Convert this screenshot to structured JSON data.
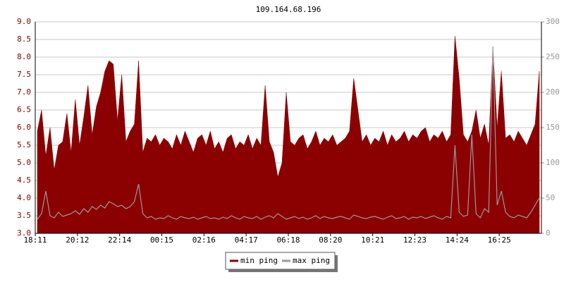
{
  "chart_data": {
    "type": "area",
    "title": "109.164.68.196",
    "categories": [
      "18:11",
      null,
      null,
      null,
      null,
      null,
      null,
      null,
      null,
      null,
      "20:12",
      null,
      null,
      null,
      null,
      null,
      null,
      null,
      null,
      null,
      "22:14",
      null,
      null,
      null,
      null,
      null,
      null,
      null,
      null,
      null,
      "00:15",
      null,
      null,
      null,
      null,
      null,
      null,
      null,
      null,
      null,
      "02:16",
      null,
      null,
      null,
      null,
      null,
      null,
      null,
      null,
      null,
      "04:17",
      null,
      null,
      null,
      null,
      null,
      null,
      null,
      null,
      null,
      "06:18",
      null,
      null,
      null,
      null,
      null,
      null,
      null,
      null,
      null,
      "08:20",
      null,
      null,
      null,
      null,
      null,
      null,
      null,
      null,
      null,
      "10:21",
      null,
      null,
      null,
      null,
      null,
      null,
      null,
      null,
      null,
      "12:23",
      null,
      null,
      null,
      null,
      null,
      null,
      null,
      null,
      null,
      "14:24",
      null,
      null,
      null,
      null,
      null,
      null,
      null,
      null,
      null,
      "16:25",
      null,
      null,
      null,
      null,
      null,
      null,
      null,
      null,
      null
    ],
    "series": [
      {
        "name": "min ping",
        "type": "area",
        "color": "#8b0000",
        "values": [
          5.9,
          6.5,
          5.2,
          6.0,
          4.8,
          5.5,
          5.6,
          6.4,
          5.3,
          6.8,
          5.5,
          6.3,
          7.2,
          5.8,
          6.6,
          7.0,
          7.6,
          7.9,
          7.8,
          6.2,
          7.5,
          5.6,
          5.9,
          6.1,
          7.9,
          5.3,
          5.7,
          5.6,
          5.8,
          5.5,
          5.7,
          5.6,
          5.4,
          5.8,
          5.5,
          5.9,
          5.6,
          5.3,
          5.7,
          5.8,
          5.5,
          5.9,
          5.4,
          5.6,
          5.3,
          5.7,
          5.8,
          5.4,
          5.6,
          5.5,
          5.8,
          5.4,
          5.7,
          5.5,
          7.2,
          5.6,
          5.3,
          4.6,
          5.0,
          7.0,
          5.6,
          5.5,
          5.7,
          5.8,
          5.4,
          5.6,
          5.9,
          5.5,
          5.7,
          5.6,
          5.8,
          5.5,
          5.6,
          5.7,
          5.9,
          7.4,
          6.5,
          5.6,
          5.8,
          5.5,
          5.7,
          5.6,
          5.9,
          5.5,
          5.8,
          5.6,
          5.7,
          5.9,
          5.6,
          5.8,
          5.7,
          5.9,
          6.0,
          5.6,
          5.8,
          5.7,
          5.9,
          5.6,
          5.8,
          8.6,
          7.4,
          5.8,
          5.6,
          5.9,
          6.5,
          5.7,
          6.1,
          5.5,
          8.3,
          6.0,
          7.6,
          5.7,
          5.8,
          5.6,
          5.9,
          5.7,
          5.5,
          5.8,
          6.1,
          7.6
        ]
      },
      {
        "name": "max ping",
        "type": "line",
        "axis": "y2",
        "color": "#999999",
        "values": [
          20,
          28,
          60,
          25,
          22,
          30,
          24,
          26,
          28,
          32,
          27,
          35,
          30,
          38,
          34,
          40,
          36,
          45,
          42,
          38,
          40,
          35,
          38,
          45,
          70,
          28,
          22,
          24,
          20,
          22,
          21,
          25,
          22,
          20,
          24,
          22,
          21,
          23,
          20,
          22,
          24,
          21,
          22,
          20,
          23,
          21,
          25,
          22,
          20,
          24,
          22,
          21,
          24,
          20,
          23,
          25,
          22,
          28,
          24,
          20,
          22,
          24,
          21,
          23,
          20,
          22,
          25,
          21,
          24,
          22,
          21,
          23,
          24,
          22,
          20,
          26,
          24,
          22,
          21,
          23,
          24,
          22,
          20,
          23,
          25,
          21,
          22,
          24,
          20,
          23,
          22,
          24,
          21,
          23,
          25,
          22,
          20,
          24,
          22,
          125,
          30,
          24,
          26,
          140,
          28,
          22,
          35,
          30,
          265,
          40,
          60,
          30,
          24,
          22,
          26,
          24,
          22,
          30,
          40,
          50
        ]
      }
    ],
    "ylim": [
      3,
      9
    ],
    "yticks": [
      {
        "value": 3,
        "label": "3.0"
      },
      {
        "value": 3.5,
        "label": "3.5"
      },
      {
        "value": 4,
        "label": "4.0"
      },
      {
        "value": 4.5,
        "label": "4.5"
      },
      {
        "value": 5,
        "label": "5.0"
      },
      {
        "value": 5.5,
        "label": "5.5"
      },
      {
        "value": 6,
        "label": "6.0"
      },
      {
        "value": 6.5,
        "label": "6.5"
      },
      {
        "value": 7,
        "label": "7.0"
      },
      {
        "value": 7.5,
        "label": "7.5"
      },
      {
        "value": 8,
        "label": "8.0"
      },
      {
        "value": 8.5,
        "label": "8.5"
      },
      {
        "value": 9,
        "label": "9.0"
      }
    ],
    "y2lim": [
      0,
      300
    ],
    "y2ticks": [
      0,
      50,
      100,
      150,
      200,
      250,
      300
    ],
    "grid": true
  }
}
